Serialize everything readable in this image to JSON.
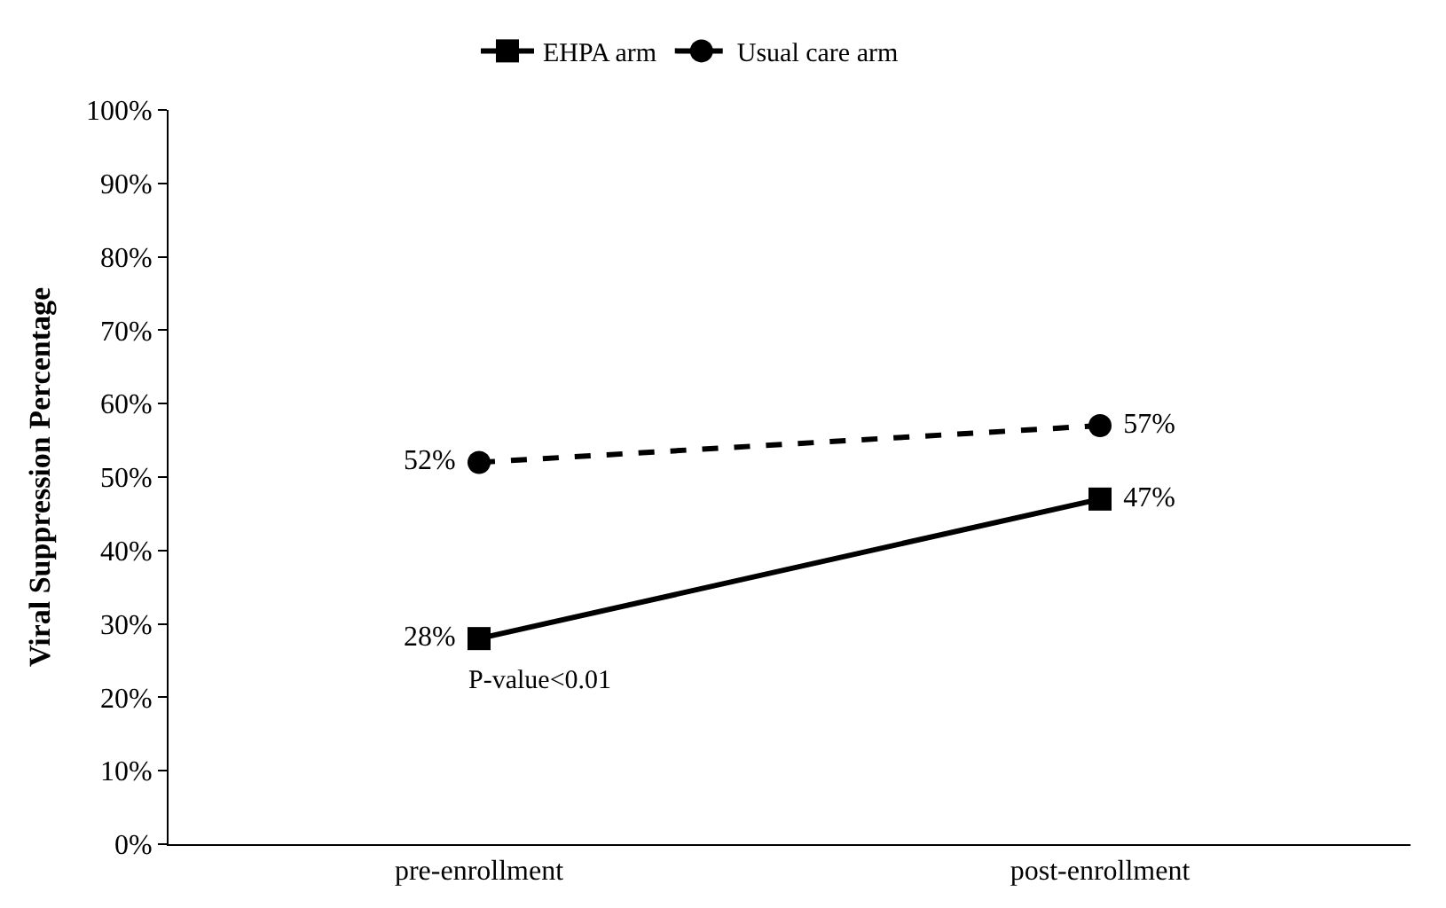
{
  "chart_data": {
    "type": "line",
    "ylabel": "Viral Suppression Percentage",
    "categories": [
      "pre-enrollment",
      "post-enrollment"
    ],
    "series": [
      {
        "name": "EHPA arm",
        "color": "#000000",
        "values": [
          28,
          47
        ],
        "marker": "square",
        "line_style": "solid",
        "value_labels": [
          "28%",
          "47%"
        ]
      },
      {
        "name": "Usual care arm",
        "color": "#000000",
        "values": [
          52,
          57
        ],
        "marker": "circle",
        "line_style": "dashed",
        "value_labels": [
          "52%",
          "57%"
        ]
      }
    ],
    "ylim": [
      0,
      100
    ],
    "yticks": [
      {
        "value": 0,
        "label": "0%"
      },
      {
        "value": 10,
        "label": "10%"
      },
      {
        "value": 20,
        "label": "20%"
      },
      {
        "value": 30,
        "label": "30%"
      },
      {
        "value": 40,
        "label": "40%"
      },
      {
        "value": 50,
        "label": "50%"
      },
      {
        "value": 60,
        "label": "60%"
      },
      {
        "value": 70,
        "label": "70%"
      },
      {
        "value": 80,
        "label": "80%"
      },
      {
        "value": 90,
        "label": "90%"
      },
      {
        "value": 100,
        "label": "100%"
      }
    ],
    "annotations": [
      {
        "text": "P-value<0.01",
        "x": "pre-enrollment",
        "y": 28
      }
    ],
    "legend": "top"
  }
}
